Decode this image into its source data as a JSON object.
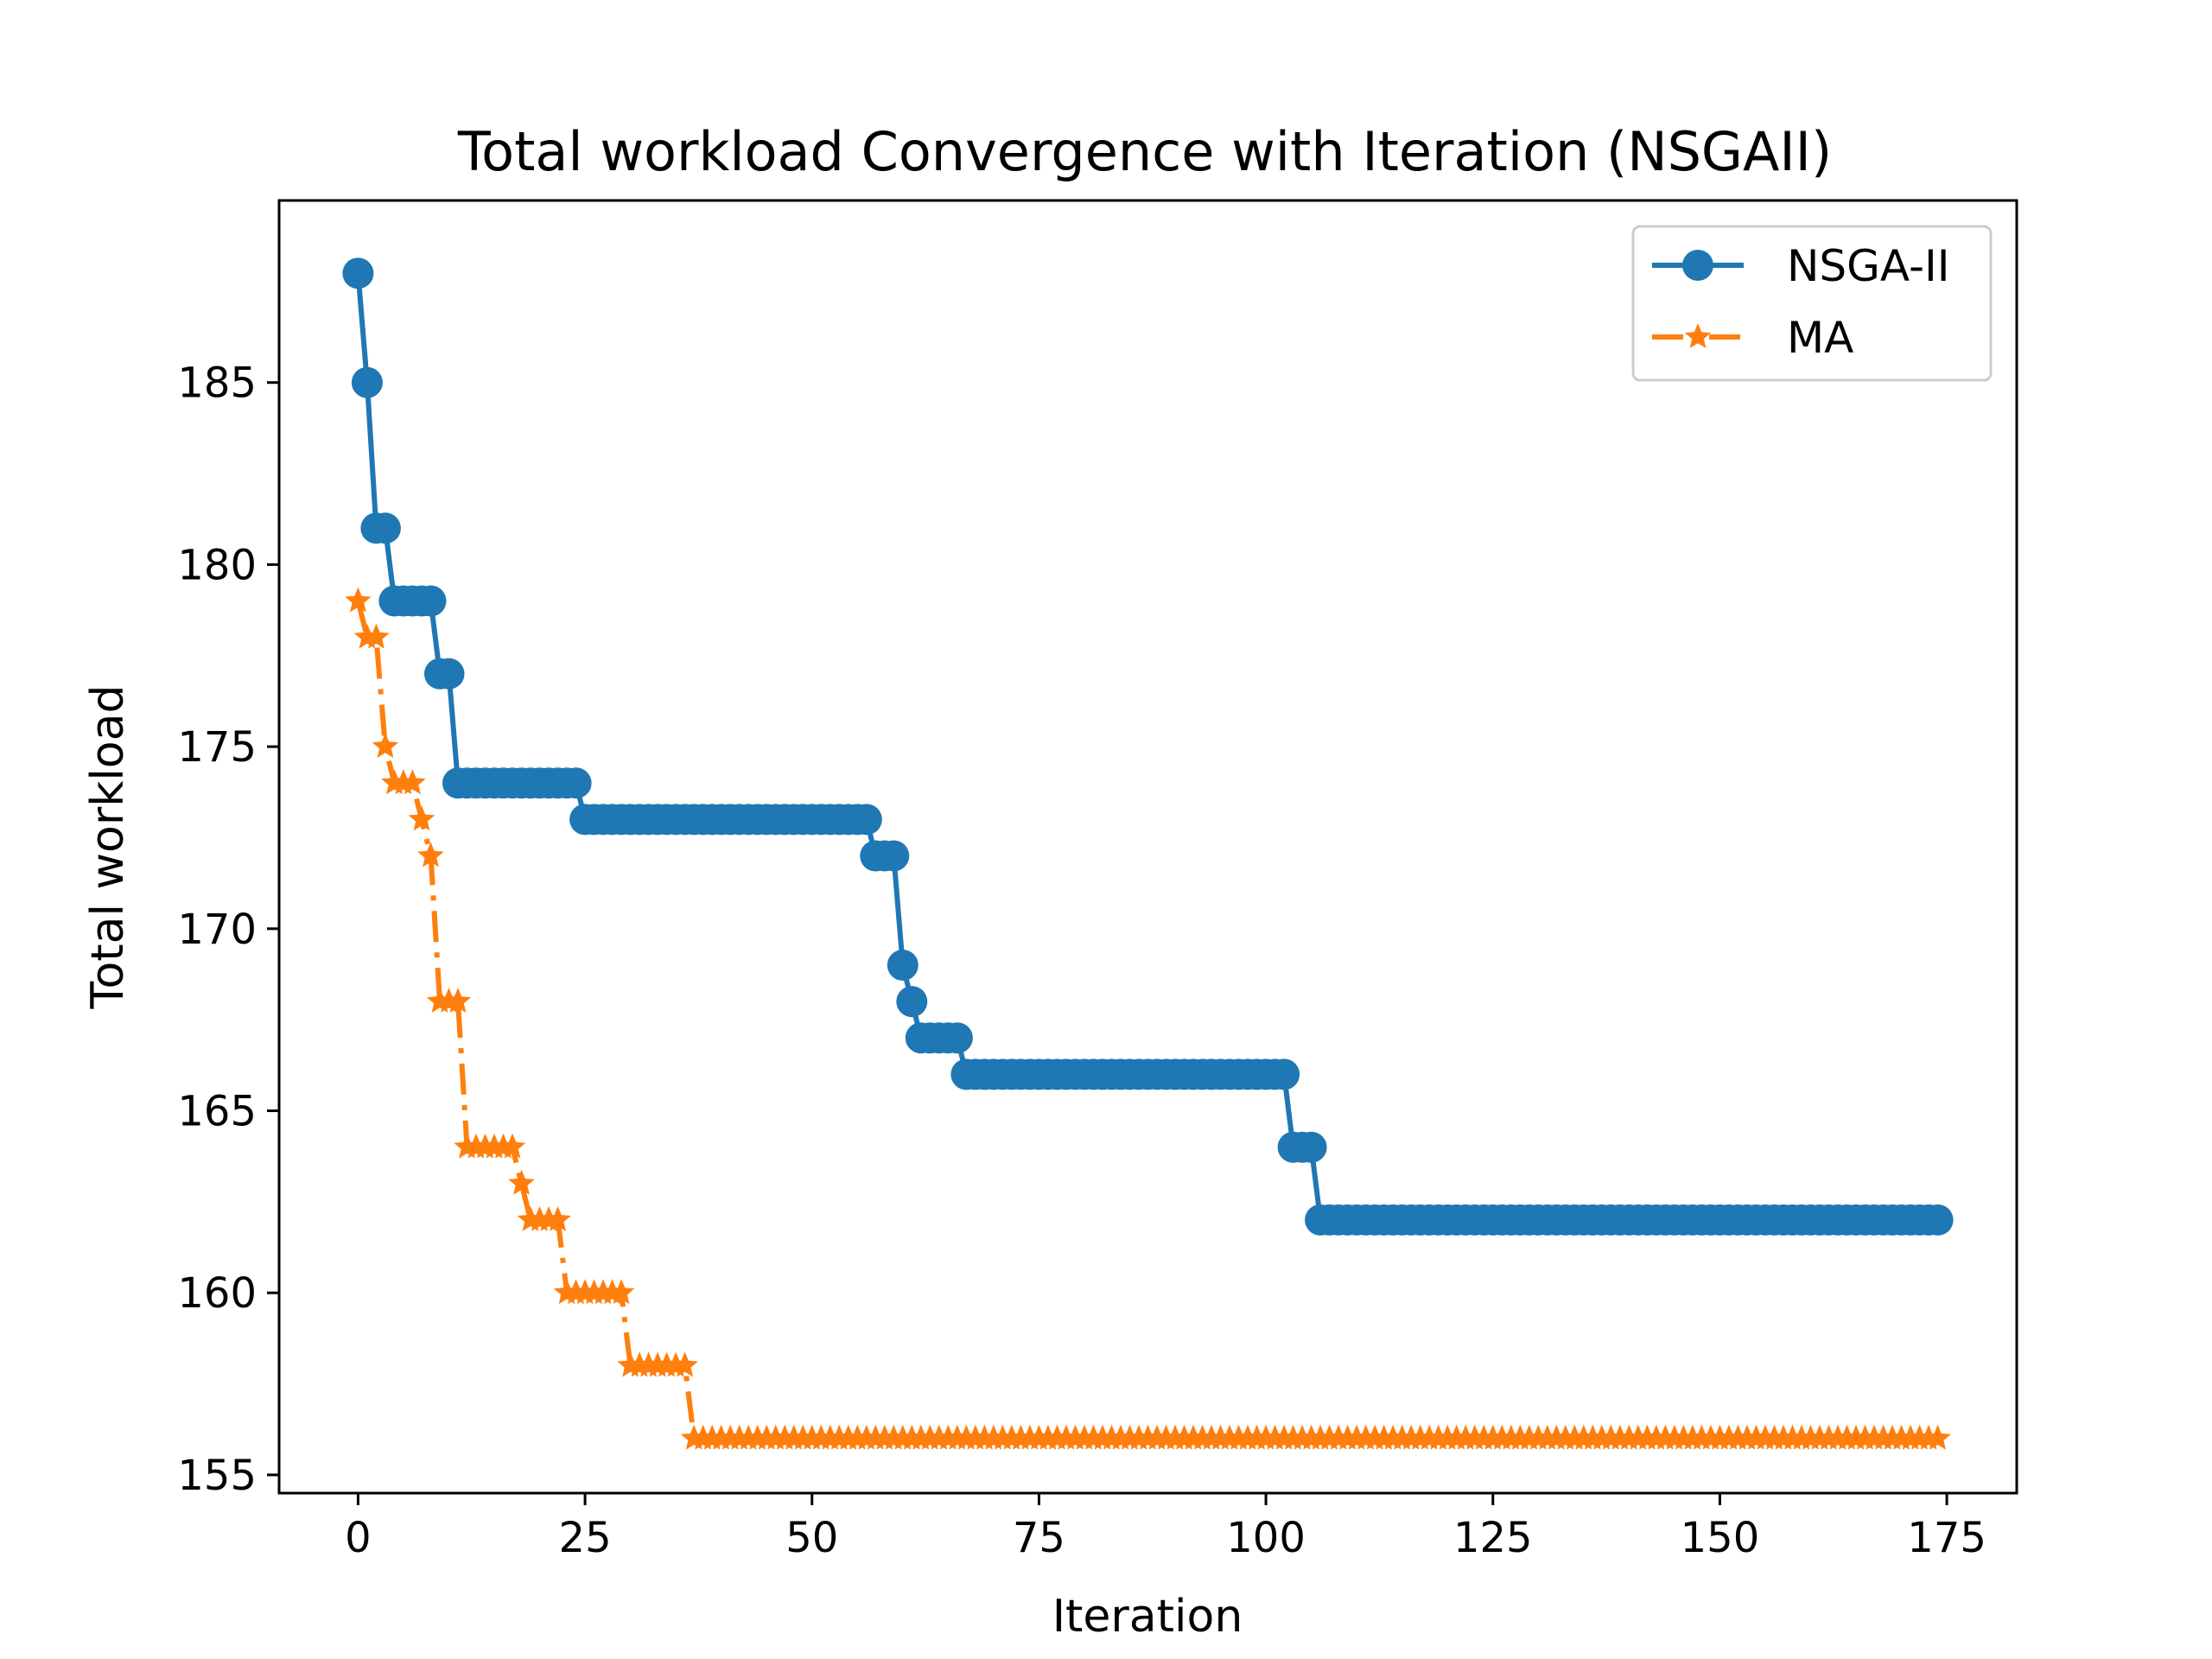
{
  "chart_data": {
    "type": "line",
    "title": "Total workload Convergence with Iteration (NSGAII)",
    "xlabel": "Iteration",
    "ylabel": "Total workload",
    "xlim": [
      -8.7,
      182.7
    ],
    "ylim": [
      154.5,
      190.0
    ],
    "xticks": [
      0,
      25,
      50,
      75,
      100,
      125,
      150,
      175
    ],
    "yticks": [
      155,
      160,
      165,
      170,
      175,
      180,
      185
    ],
    "grid": false,
    "legend_position": "top-right",
    "series": [
      {
        "name": "NSGA-II",
        "color": "#1f77b4",
        "marker": "circle",
        "linestyle": "solid",
        "segments": [
          {
            "from": 0,
            "to": 0,
            "value": 188
          },
          {
            "from": 1,
            "to": 1,
            "value": 185
          },
          {
            "from": 2,
            "to": 3,
            "value": 181
          },
          {
            "from": 4,
            "to": 8,
            "value": 179
          },
          {
            "from": 9,
            "to": 10,
            "value": 177
          },
          {
            "from": 11,
            "to": 24,
            "value": 174
          },
          {
            "from": 25,
            "to": 56,
            "value": 173
          },
          {
            "from": 57,
            "to": 59,
            "value": 172
          },
          {
            "from": 60,
            "to": 60,
            "value": 169
          },
          {
            "from": 61,
            "to": 61,
            "value": 168
          },
          {
            "from": 62,
            "to": 66,
            "value": 167
          },
          {
            "from": 67,
            "to": 102,
            "value": 166
          },
          {
            "from": 103,
            "to": 105,
            "value": 164
          },
          {
            "from": 106,
            "to": 174,
            "value": 162
          }
        ]
      },
      {
        "name": "MA",
        "color": "#ff7f0e",
        "marker": "star",
        "linestyle": "dashdot",
        "segments": [
          {
            "from": 0,
            "to": 0,
            "value": 179
          },
          {
            "from": 1,
            "to": 2,
            "value": 178
          },
          {
            "from": 3,
            "to": 3,
            "value": 175
          },
          {
            "from": 4,
            "to": 6,
            "value": 174
          },
          {
            "from": 7,
            "to": 7,
            "value": 173
          },
          {
            "from": 8,
            "to": 8,
            "value": 172
          },
          {
            "from": 9,
            "to": 11,
            "value": 168
          },
          {
            "from": 12,
            "to": 17,
            "value": 164
          },
          {
            "from": 18,
            "to": 18,
            "value": 163
          },
          {
            "from": 19,
            "to": 22,
            "value": 162
          },
          {
            "from": 23,
            "to": 29,
            "value": 160
          },
          {
            "from": 30,
            "to": 36,
            "value": 158
          },
          {
            "from": 37,
            "to": 174,
            "value": 156
          }
        ]
      }
    ]
  }
}
